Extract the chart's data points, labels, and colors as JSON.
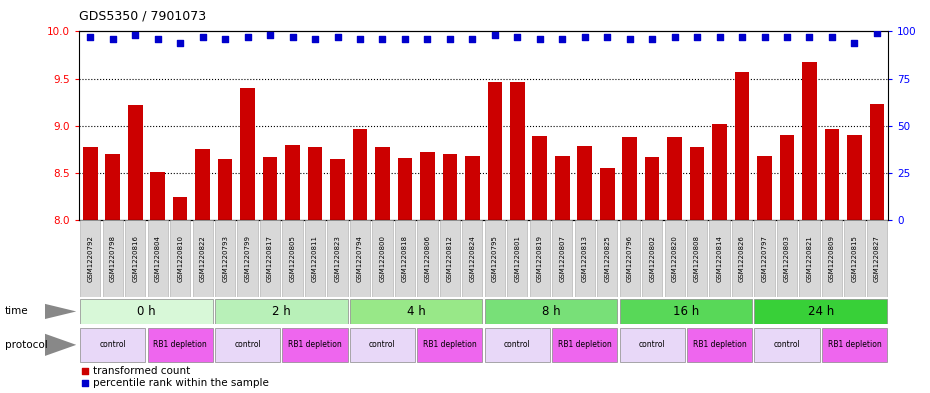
{
  "title": "GDS5350 / 7901073",
  "samples": [
    "GSM1220792",
    "GSM1220798",
    "GSM1220816",
    "GSM1220804",
    "GSM1220810",
    "GSM1220822",
    "GSM1220793",
    "GSM1220799",
    "GSM1220817",
    "GSM1220805",
    "GSM1220811",
    "GSM1220823",
    "GSM1220794",
    "GSM1220800",
    "GSM1220818",
    "GSM1220806",
    "GSM1220812",
    "GSM1220824",
    "GSM1220795",
    "GSM1220801",
    "GSM1220819",
    "GSM1220807",
    "GSM1220813",
    "GSM1220825",
    "GSM1220796",
    "GSM1220802",
    "GSM1220820",
    "GSM1220808",
    "GSM1220814",
    "GSM1220826",
    "GSM1220797",
    "GSM1220803",
    "GSM1220821",
    "GSM1220809",
    "GSM1220815",
    "GSM1220827"
  ],
  "bar_values": [
    8.78,
    8.7,
    9.22,
    8.51,
    8.25,
    8.75,
    8.65,
    9.4,
    8.67,
    8.8,
    8.77,
    8.65,
    8.97,
    8.78,
    8.66,
    8.72,
    8.7,
    8.68,
    9.46,
    9.46,
    8.89,
    8.68,
    8.79,
    8.55,
    8.88,
    8.67,
    8.88,
    8.78,
    9.02,
    9.57,
    8.68,
    8.9,
    9.68,
    8.97,
    8.9,
    9.23
  ],
  "percentile_values": [
    97,
    96,
    98,
    96,
    94,
    97,
    96,
    97,
    98,
    97,
    96,
    97,
    96,
    96,
    96,
    96,
    96,
    96,
    98,
    97,
    96,
    96,
    97,
    97,
    96,
    96,
    97,
    97,
    97,
    97,
    97,
    97,
    97,
    97,
    94,
    99
  ],
  "bar_color": "#cc0000",
  "dot_color": "#0000cc",
  "ylim_left": [
    8.0,
    10.0
  ],
  "ylim_right": [
    0,
    100
  ],
  "yticks_left": [
    8.0,
    8.5,
    9.0,
    9.5,
    10.0
  ],
  "yticks_right": [
    0,
    25,
    50,
    75,
    100
  ],
  "gridlines": [
    8.5,
    9.0,
    9.5
  ],
  "time_groups": [
    {
      "label": "0 h",
      "start": 0,
      "end": 6
    },
    {
      "label": "2 h",
      "start": 6,
      "end": 12
    },
    {
      "label": "4 h",
      "start": 12,
      "end": 18
    },
    {
      "label": "8 h",
      "start": 18,
      "end": 24
    },
    {
      "label": "16 h",
      "start": 24,
      "end": 30
    },
    {
      "label": "24 h",
      "start": 30,
      "end": 36
    }
  ],
  "protocol_groups": [
    {
      "label": "control",
      "start": 0,
      "end": 3,
      "color": "#e8d8f8"
    },
    {
      "label": "RB1 depletion",
      "start": 3,
      "end": 6,
      "color": "#ee66ee"
    },
    {
      "label": "control",
      "start": 6,
      "end": 9,
      "color": "#e8d8f8"
    },
    {
      "label": "RB1 depletion",
      "start": 9,
      "end": 12,
      "color": "#ee66ee"
    },
    {
      "label": "control",
      "start": 12,
      "end": 15,
      "color": "#e8d8f8"
    },
    {
      "label": "RB1 depletion",
      "start": 15,
      "end": 18,
      "color": "#ee66ee"
    },
    {
      "label": "control",
      "start": 18,
      "end": 21,
      "color": "#e8d8f8"
    },
    {
      "label": "RB1 depletion",
      "start": 21,
      "end": 24,
      "color": "#ee66ee"
    },
    {
      "label": "control",
      "start": 24,
      "end": 27,
      "color": "#e8d8f8"
    },
    {
      "label": "RB1 depletion",
      "start": 27,
      "end": 30,
      "color": "#ee66ee"
    },
    {
      "label": "control",
      "start": 30,
      "end": 33,
      "color": "#e8d8f8"
    },
    {
      "label": "RB1 depletion",
      "start": 33,
      "end": 36,
      "color": "#ee66ee"
    }
  ],
  "time_bg_colors": [
    "#d8f8d8",
    "#b8f0b8",
    "#98e898",
    "#78e078",
    "#58d858",
    "#38d038"
  ],
  "legend_items": [
    {
      "label": "transformed count",
      "color": "#cc0000"
    },
    {
      "label": "percentile rank within the sample",
      "color": "#0000cc"
    }
  ]
}
